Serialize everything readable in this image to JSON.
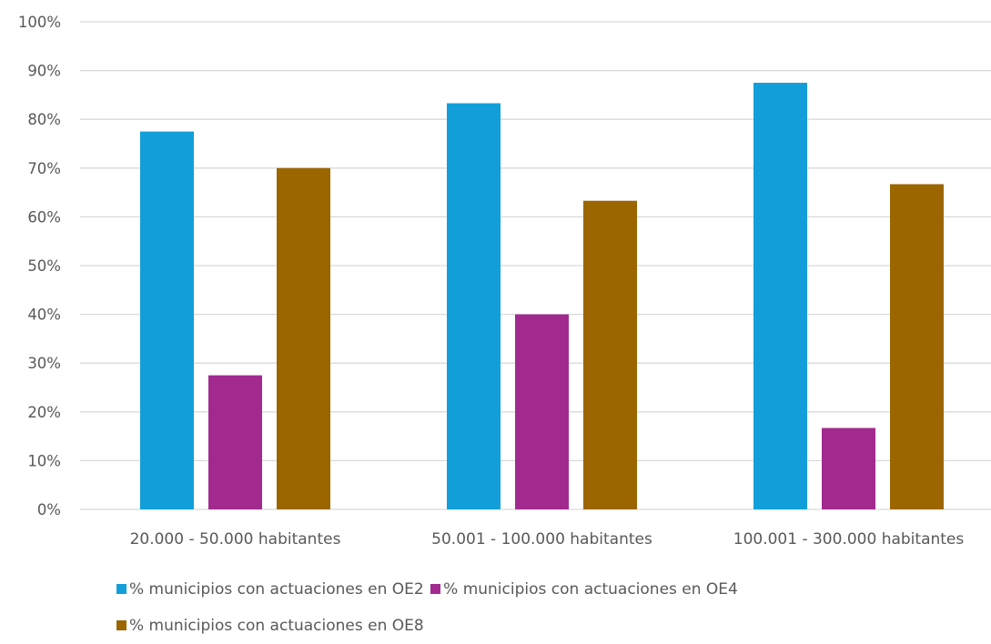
{
  "chart_data": {
    "type": "bar",
    "categories": [
      "20.000 - 50.000 habitantes",
      "50.001 - 100.000 habitantes",
      "100.001 - 300.000 habitantes"
    ],
    "series": [
      {
        "name": "% municipios con actuaciones en OE2",
        "color": "#129fd9",
        "values": [
          77.5,
          83.3,
          87.5
        ]
      },
      {
        "name": "% municipios con actuaciones en OE4",
        "color": "#a22a8f",
        "values": [
          27.5,
          40.0,
          16.7
        ]
      },
      {
        "name": "% municipios con actuaciones en OE8",
        "color": "#9b6600",
        "values": [
          70.0,
          63.3,
          66.7
        ]
      }
    ],
    "y_ticks": [
      "0%",
      "10%",
      "20%",
      "30%",
      "40%",
      "50%",
      "60%",
      "70%",
      "80%",
      "90%",
      "100%"
    ],
    "ylim": [
      0,
      100
    ],
    "grid": true,
    "legend_position": "bottom",
    "title": "",
    "xlabel": "",
    "ylabel": ""
  },
  "legend": {
    "items": [
      "% municipios con actuaciones en OE2",
      "% municipios con actuaciones en OE4",
      "% municipios con actuaciones en OE8"
    ]
  }
}
